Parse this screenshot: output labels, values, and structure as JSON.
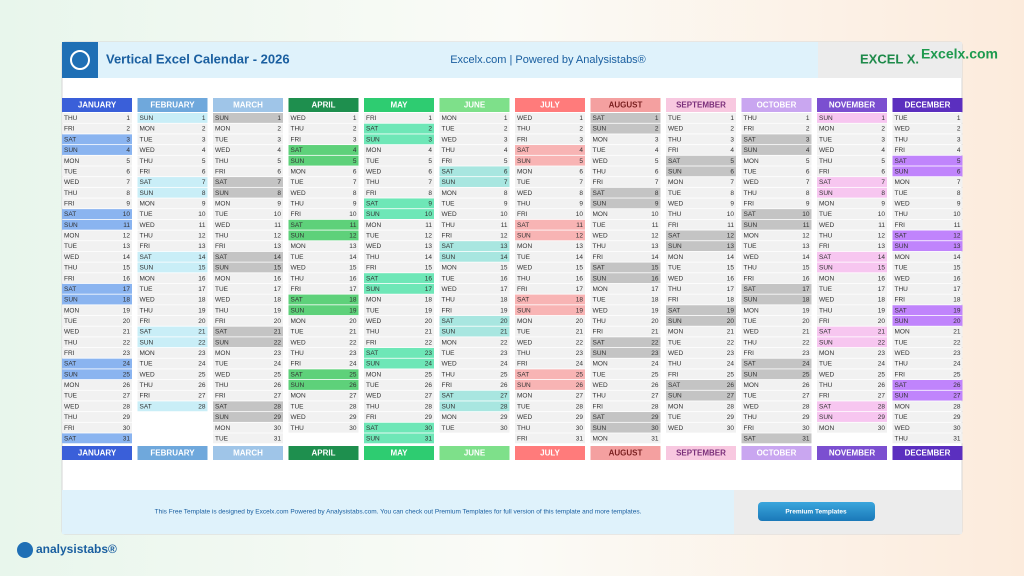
{
  "header": {
    "title": "Vertical Excel Calendar - 2026",
    "subtitle": "Excelx.com | Powered by Analysistabs®",
    "brand": "EXCEL X.",
    "site": "Excelx.com"
  },
  "months": [
    {
      "name": "JANUARY",
      "weekdays": [
        "THU",
        "FRI",
        "SAT",
        "SUN",
        "MON",
        "TUE",
        "WED",
        "THU",
        "FRI",
        "SAT",
        "SUN",
        "MON",
        "TUE",
        "WED",
        "THU",
        "FRI",
        "SAT",
        "SUN",
        "MON",
        "TUE",
        "WED",
        "THU",
        "FRI",
        "SAT",
        "SUN",
        "MON",
        "TUE",
        "WED",
        "THU",
        "FRI",
        "SAT"
      ],
      "days": [
        1,
        2,
        3,
        4,
        5,
        6,
        7,
        8,
        9,
        10,
        11,
        12,
        13,
        14,
        15,
        16,
        17,
        18,
        19,
        20,
        21,
        22,
        23,
        24,
        25,
        26,
        27,
        28,
        29,
        30,
        31
      ]
    },
    {
      "name": "FEBRUARY",
      "weekdays": [
        "SUN",
        "MON",
        "TUE",
        "WED",
        "THU",
        "FRI",
        "SAT",
        "SUN",
        "MON",
        "TUE",
        "WED",
        "THU",
        "FRI",
        "SAT",
        "SUN",
        "MON",
        "TUE",
        "WED",
        "THU",
        "FRI",
        "SAT",
        "SUN",
        "MON",
        "TUE",
        "WED",
        "THU",
        "FRI",
        "SAT"
      ],
      "days": [
        1,
        2,
        3,
        4,
        5,
        6,
        7,
        8,
        9,
        10,
        11,
        12,
        13,
        14,
        15,
        16,
        17,
        18,
        19,
        20,
        21,
        22,
        23,
        24,
        25,
        26,
        27,
        28
      ]
    },
    {
      "name": "MARCH",
      "weekdays": [
        "SUN",
        "MON",
        "TUE",
        "WED",
        "THU",
        "FRI",
        "SAT",
        "SUN",
        "MON",
        "TUE",
        "WED",
        "THU",
        "FRI",
        "SAT",
        "SUN",
        "MON",
        "TUE",
        "WED",
        "THU",
        "FRI",
        "SAT",
        "SUN",
        "MON",
        "TUE",
        "WED",
        "THU",
        "FRI",
        "SAT",
        "SUN",
        "MON",
        "TUE"
      ],
      "days": [
        1,
        2,
        3,
        4,
        5,
        6,
        7,
        8,
        9,
        10,
        11,
        12,
        13,
        14,
        15,
        16,
        17,
        18,
        19,
        20,
        21,
        22,
        23,
        24,
        25,
        26,
        27,
        28,
        29,
        30,
        31
      ]
    },
    {
      "name": "APRIL",
      "weekdays": [
        "WED",
        "THU",
        "FRI",
        "SAT",
        "SUN",
        "MON",
        "TUE",
        "WED",
        "THU",
        "FRI",
        "SAT",
        "SUN",
        "MON",
        "TUE",
        "WED",
        "THU",
        "FRI",
        "SAT",
        "SUN",
        "MON",
        "TUE",
        "WED",
        "THU",
        "FRI",
        "SAT",
        "SUN",
        "MON",
        "TUE",
        "WED",
        "THU"
      ],
      "days": [
        1,
        2,
        3,
        4,
        5,
        6,
        7,
        8,
        9,
        10,
        11,
        12,
        13,
        14,
        15,
        16,
        17,
        18,
        19,
        20,
        21,
        22,
        23,
        24,
        25,
        26,
        27,
        28,
        29,
        30
      ]
    },
    {
      "name": "MAY",
      "weekdays": [
        "FRI",
        "SAT",
        "SUN",
        "MON",
        "TUE",
        "WED",
        "THU",
        "FRI",
        "SAT",
        "SUN",
        "MON",
        "TUE",
        "WED",
        "THU",
        "FRI",
        "SAT",
        "SUN",
        "MON",
        "TUE",
        "WED",
        "THU",
        "FRI",
        "SAT",
        "SUN",
        "MON",
        "TUE",
        "WED",
        "THU",
        "FRI",
        "SAT",
        "SUN"
      ],
      "days": [
        1,
        2,
        3,
        4,
        5,
        6,
        7,
        8,
        9,
        10,
        11,
        12,
        13,
        14,
        15,
        16,
        17,
        18,
        19,
        20,
        21,
        22,
        23,
        24,
        25,
        26,
        27,
        28,
        29,
        30,
        31
      ]
    },
    {
      "name": "JUNE",
      "weekdays": [
        "MON",
        "TUE",
        "WED",
        "THU",
        "FRI",
        "SAT",
        "SUN",
        "MON",
        "TUE",
        "WED",
        "THU",
        "FRI",
        "SAT",
        "SUN",
        "MON",
        "TUE",
        "WED",
        "THU",
        "FRI",
        "SAT",
        "SUN",
        "MON",
        "TUE",
        "WED",
        "THU",
        "FRI",
        "SAT",
        "SUN",
        "MON",
        "TUE"
      ],
      "days": [
        1,
        2,
        3,
        4,
        5,
        6,
        7,
        8,
        9,
        10,
        11,
        12,
        13,
        14,
        15,
        16,
        17,
        18,
        19,
        20,
        21,
        22,
        23,
        24,
        25,
        26,
        27,
        28,
        29,
        30
      ]
    },
    {
      "name": "JULY",
      "weekdays": [
        "WED",
        "THU",
        "FRI",
        "SAT",
        "SUN",
        "MON",
        "TUE",
        "WED",
        "THU",
        "FRI",
        "SAT",
        "SUN",
        "MON",
        "TUE",
        "WED",
        "THU",
        "FRI",
        "SAT",
        "SUN",
        "MON",
        "TUE",
        "WED",
        "THU",
        "FRI",
        "SAT",
        "SUN",
        "MON",
        "TUE",
        "WED",
        "THU",
        "FRI"
      ],
      "days": [
        1,
        2,
        3,
        4,
        5,
        6,
        7,
        8,
        9,
        10,
        11,
        12,
        13,
        14,
        15,
        16,
        17,
        18,
        19,
        20,
        21,
        22,
        23,
        24,
        25,
        26,
        27,
        28,
        29,
        30,
        31
      ]
    },
    {
      "name": "AUGUST",
      "weekdays": [
        "SAT",
        "SUN",
        "MON",
        "TUE",
        "WED",
        "THU",
        "FRI",
        "SAT",
        "SUN",
        "MON",
        "TUE",
        "WED",
        "THU",
        "FRI",
        "SAT",
        "SUN",
        "MON",
        "TUE",
        "WED",
        "THU",
        "FRI",
        "SAT",
        "SUN",
        "MON",
        "TUE",
        "WED",
        "THU",
        "FRI",
        "SAT",
        "SUN",
        "MON"
      ],
      "days": [
        1,
        2,
        3,
        4,
        5,
        6,
        7,
        8,
        9,
        10,
        11,
        12,
        13,
        14,
        15,
        16,
        17,
        18,
        19,
        20,
        21,
        22,
        23,
        24,
        25,
        26,
        27,
        28,
        29,
        30,
        31
      ]
    },
    {
      "name": "SEPTEMBER",
      "weekdays": [
        "TUE",
        "WED",
        "THU",
        "FRI",
        "SAT",
        "SUN",
        "MON",
        "TUE",
        "WED",
        "THU",
        "FRI",
        "SAT",
        "SUN",
        "MON",
        "TUE",
        "WED",
        "THU",
        "FRI",
        "SAT",
        "SUN",
        "MON",
        "TUE",
        "WED",
        "THU",
        "FRI",
        "SAT",
        "SUN",
        "MON",
        "TUE",
        "WED"
      ],
      "days": [
        1,
        2,
        3,
        4,
        5,
        6,
        7,
        8,
        9,
        10,
        11,
        12,
        13,
        14,
        15,
        16,
        17,
        18,
        19,
        20,
        21,
        22,
        23,
        24,
        25,
        26,
        27,
        28,
        29,
        30
      ]
    },
    {
      "name": "OCTOBER",
      "weekdays": [
        "THU",
        "FRI",
        "SAT",
        "SUN",
        "MON",
        "TUE",
        "WED",
        "THU",
        "FRI",
        "SAT",
        "SUN",
        "MON",
        "TUE",
        "WED",
        "THU",
        "FRI",
        "SAT",
        "SUN",
        "MON",
        "TUE",
        "WED",
        "THU",
        "FRI",
        "SAT",
        "SUN",
        "MON",
        "TUE",
        "WED",
        "THU",
        "FRI",
        "SAT"
      ],
      "days": [
        1,
        2,
        3,
        4,
        5,
        6,
        7,
        8,
        9,
        10,
        11,
        12,
        13,
        14,
        15,
        16,
        17,
        18,
        19,
        20,
        21,
        22,
        23,
        24,
        25,
        26,
        27,
        28,
        29,
        30,
        31
      ]
    },
    {
      "name": "NOVEMBER",
      "weekdays": [
        "SUN",
        "MON",
        "TUE",
        "WED",
        "THU",
        "FRI",
        "SAT",
        "SUN",
        "MON",
        "TUE",
        "WED",
        "THU",
        "FRI",
        "SAT",
        "SUN",
        "MON",
        "TUE",
        "WED",
        "THU",
        "FRI",
        "SAT",
        "SUN",
        "MON",
        "TUE",
        "WED",
        "THU",
        "FRI",
        "SAT",
        "SUN",
        "MON"
      ],
      "days": [
        1,
        2,
        3,
        4,
        5,
        6,
        7,
        8,
        9,
        10,
        11,
        12,
        13,
        14,
        15,
        16,
        17,
        18,
        19,
        20,
        21,
        22,
        23,
        24,
        25,
        26,
        27,
        28,
        29,
        30
      ]
    },
    {
      "name": "DECEMBER",
      "weekdays": [
        "TUE",
        "WED",
        "THU",
        "FRI",
        "SAT",
        "SUN",
        "MON",
        "TUE",
        "WED",
        "THU",
        "FRI",
        "SAT",
        "SUN",
        "MON",
        "TUE",
        "WED",
        "THU",
        "FRI",
        "SAT",
        "SUN",
        "MON",
        "TUE",
        "WED",
        "THU",
        "FRI",
        "SAT",
        "SUN",
        "MON",
        "TUE",
        "WED",
        "THU"
      ],
      "days": [
        1,
        2,
        3,
        4,
        5,
        6,
        7,
        8,
        9,
        10,
        11,
        12,
        13,
        14,
        15,
        16,
        17,
        18,
        19,
        20,
        21,
        22,
        23,
        24,
        25,
        26,
        27,
        28,
        29,
        30,
        31
      ]
    }
  ],
  "footer": {
    "note": "This Free Template is designed by Excelx.com Powered by Analysistabs.com. You can check out Premium Templates for full version of this template and more templates.",
    "button": "Premium Templates"
  },
  "logo": "analysistabs®"
}
